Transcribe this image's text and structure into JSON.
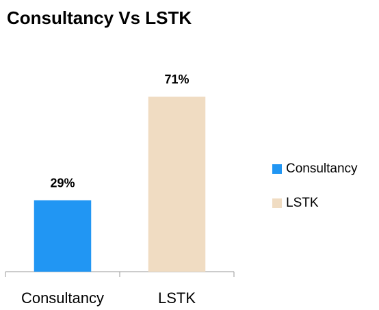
{
  "chart_data": {
    "type": "bar",
    "title": "Consultancy Vs LSTK",
    "categories": [
      "Consultancy",
      "LSTK"
    ],
    "values": [
      29,
      71
    ],
    "value_labels": [
      "29%",
      "71%"
    ],
    "colors": [
      "#2196f3",
      "#f0dcc2"
    ],
    "ylim": [
      0,
      80
    ],
    "legend": "right"
  }
}
